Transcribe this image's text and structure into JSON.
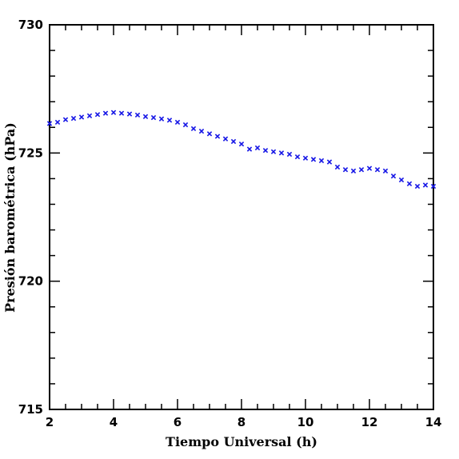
{
  "chart_data": {
    "type": "scatter",
    "xlabel": "Tiempo Universal (h)",
    "ylabel": "Presión barométrica (hPa)",
    "xlim": [
      2,
      14
    ],
    "ylim": [
      715,
      730
    ],
    "x_ticks": [
      2,
      4,
      6,
      8,
      10,
      12,
      14
    ],
    "y_ticks": [
      715,
      720,
      725,
      730
    ],
    "x_minor_step": 0.5,
    "y_minor_step": 1,
    "grid": false,
    "marker": "x",
    "color": "#1515e6",
    "series": [
      {
        "x": [
          2.0,
          2.25,
          2.5,
          2.75,
          3.0,
          3.25,
          3.5,
          3.75,
          4.0,
          4.25,
          4.5,
          4.75,
          5.0,
          5.25,
          5.5,
          5.75,
          6.0,
          6.25,
          6.5,
          6.75,
          7.0,
          7.25,
          7.5,
          7.75,
          8.0,
          8.25,
          8.5,
          8.75,
          9.0,
          9.25,
          9.5,
          9.75,
          10.0,
          10.25,
          10.5,
          10.75,
          11.0,
          11.25,
          11.5,
          11.75,
          12.0,
          12.25,
          12.5,
          12.75,
          13.0,
          13.25,
          13.5,
          13.75,
          14.0
        ],
        "y": [
          726.15,
          726.2,
          726.3,
          726.35,
          726.4,
          726.45,
          726.5,
          726.55,
          726.58,
          726.55,
          726.52,
          726.48,
          726.42,
          726.38,
          726.33,
          726.28,
          726.2,
          726.1,
          725.95,
          725.85,
          725.75,
          725.65,
          725.55,
          725.45,
          725.35,
          725.15,
          725.2,
          725.1,
          725.05,
          725.0,
          724.95,
          724.85,
          724.8,
          724.75,
          724.7,
          724.65,
          724.45,
          724.35,
          724.3,
          724.35,
          724.4,
          724.35,
          724.3,
          724.1,
          723.95,
          723.8,
          723.7,
          723.75,
          723.7
        ]
      }
    ]
  }
}
